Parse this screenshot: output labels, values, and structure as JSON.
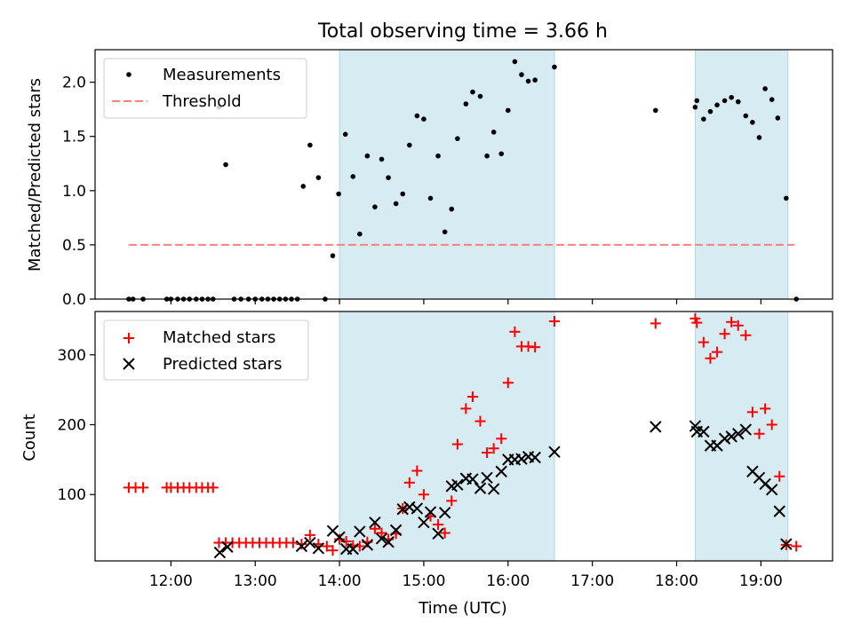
{
  "figure_title": "Total observing time = 3.66 h",
  "colors": {
    "shade": "#add8e6",
    "measurement": "#000000",
    "threshold": "#ff7f7f",
    "matched": "#ff0000",
    "predicted": "#000000"
  },
  "chart_data": [
    {
      "type": "scatter",
      "panel": "top",
      "title": "Total observing time = 3.66 h",
      "xlabel": "",
      "ylabel": "Matched/Predicted stars",
      "xlim": [
        11.1,
        19.85
      ],
      "ylim": [
        0,
        2.3
      ],
      "yticks": [
        0.0,
        0.5,
        1.0,
        1.5,
        2.0
      ],
      "ytick_labels": [
        "0.0",
        "0.5",
        "1.0",
        "1.5",
        "2.0"
      ],
      "xticks": [
        12,
        13,
        14,
        15,
        16,
        17,
        18,
        19
      ],
      "shaded_intervals": [
        [
          14.0,
          16.55
        ],
        [
          18.22,
          19.32
        ]
      ],
      "threshold": {
        "label": "Threshold",
        "y": 0.5,
        "x_range": [
          11.5,
          19.4
        ]
      },
      "legend": {
        "placement": "top-left",
        "entries": [
          "Measurements",
          "Threshold"
        ]
      },
      "series": [
        {
          "name": "Measurements",
          "points": [
            [
              11.5,
              0.0
            ],
            [
              11.55,
              0.0
            ],
            [
              11.67,
              0.0
            ],
            [
              11.95,
              0.0
            ],
            [
              12.0,
              0.0
            ],
            [
              12.08,
              0.0
            ],
            [
              12.15,
              0.0
            ],
            [
              12.22,
              0.0
            ],
            [
              12.3,
              0.0
            ],
            [
              12.37,
              0.0
            ],
            [
              12.44,
              0.0
            ],
            [
              12.5,
              0.0
            ],
            [
              12.57,
              1.77
            ],
            [
              12.65,
              1.24
            ],
            [
              12.75,
              0.0
            ],
            [
              12.83,
              0.0
            ],
            [
              12.92,
              0.0
            ],
            [
              13.0,
              0.0
            ],
            [
              13.08,
              0.0
            ],
            [
              13.15,
              0.0
            ],
            [
              13.22,
              0.0
            ],
            [
              13.29,
              0.0
            ],
            [
              13.36,
              0.0
            ],
            [
              13.43,
              0.0
            ],
            [
              13.5,
              0.0
            ],
            [
              13.57,
              1.04
            ],
            [
              13.65,
              1.42
            ],
            [
              13.75,
              1.12
            ],
            [
              13.83,
              0.0
            ],
            [
              13.92,
              0.4
            ],
            [
              13.99,
              0.97
            ],
            [
              14.07,
              1.52
            ],
            [
              14.16,
              1.13
            ],
            [
              14.24,
              0.6
            ],
            [
              14.33,
              1.32
            ],
            [
              14.42,
              0.85
            ],
            [
              14.5,
              1.29
            ],
            [
              14.58,
              1.12
            ],
            [
              14.67,
              0.88
            ],
            [
              14.75,
              0.97
            ],
            [
              14.83,
              1.42
            ],
            [
              14.92,
              1.69
            ],
            [
              15.0,
              1.66
            ],
            [
              15.08,
              0.93
            ],
            [
              15.17,
              1.32
            ],
            [
              15.25,
              0.62
            ],
            [
              15.33,
              0.83
            ],
            [
              15.4,
              1.48
            ],
            [
              15.5,
              1.8
            ],
            [
              15.58,
              1.91
            ],
            [
              15.67,
              1.87
            ],
            [
              15.75,
              1.32
            ],
            [
              15.83,
              1.54
            ],
            [
              15.92,
              1.34
            ],
            [
              16.0,
              1.74
            ],
            [
              16.08,
              2.19
            ],
            [
              16.16,
              2.07
            ],
            [
              16.24,
              2.01
            ],
            [
              16.32,
              2.02
            ],
            [
              16.55,
              2.14
            ],
            [
              17.75,
              1.74
            ],
            [
              18.22,
              1.77
            ],
            [
              18.24,
              1.83
            ],
            [
              18.32,
              1.66
            ],
            [
              18.4,
              1.73
            ],
            [
              18.48,
              1.79
            ],
            [
              18.57,
              1.83
            ],
            [
              18.65,
              1.86
            ],
            [
              18.73,
              1.82
            ],
            [
              18.82,
              1.69
            ],
            [
              18.9,
              1.63
            ],
            [
              18.98,
              1.49
            ],
            [
              19.05,
              1.94
            ],
            [
              19.13,
              1.84
            ],
            [
              19.2,
              1.67
            ],
            [
              19.3,
              0.93
            ],
            [
              19.42,
              0.0
            ]
          ]
        }
      ]
    },
    {
      "type": "scatter",
      "panel": "bottom",
      "title": "",
      "xlabel": "Time (UTC)",
      "ylabel": "Count",
      "xlim": [
        11.1,
        19.85
      ],
      "ylim": [
        5,
        362
      ],
      "yticks": [
        100,
        200,
        300
      ],
      "ytick_labels": [
        "100",
        "200",
        "300"
      ],
      "xticks": [
        12,
        13,
        14,
        15,
        16,
        17,
        18,
        19
      ],
      "xtick_labels": [
        "12:00",
        "13:00",
        "14:00",
        "15:00",
        "16:00",
        "17:00",
        "18:00",
        "19:00"
      ],
      "shaded_intervals": [
        [
          14.0,
          16.55
        ],
        [
          18.22,
          19.32
        ]
      ],
      "legend": {
        "placement": "top-left",
        "entries": [
          "Matched stars",
          "Predicted stars"
        ]
      },
      "series": [
        {
          "name": "Matched stars",
          "marker": "plus",
          "points": [
            [
              11.5,
              110
            ],
            [
              11.58,
              110
            ],
            [
              11.67,
              110
            ],
            [
              11.95,
              110
            ],
            [
              12.0,
              110
            ],
            [
              12.08,
              110
            ],
            [
              12.15,
              110
            ],
            [
              12.22,
              110
            ],
            [
              12.3,
              110
            ],
            [
              12.37,
              110
            ],
            [
              12.44,
              110
            ],
            [
              12.5,
              110
            ],
            [
              12.57,
              31
            ],
            [
              12.65,
              31
            ],
            [
              12.73,
              31
            ],
            [
              12.81,
              31
            ],
            [
              12.89,
              31
            ],
            [
              12.97,
              31
            ],
            [
              13.05,
              31
            ],
            [
              13.13,
              31
            ],
            [
              13.21,
              31
            ],
            [
              13.29,
              31
            ],
            [
              13.37,
              31
            ],
            [
              13.45,
              31
            ],
            [
              13.55,
              29
            ],
            [
              13.65,
              42
            ],
            [
              13.75,
              29
            ],
            [
              13.85,
              26
            ],
            [
              13.92,
              20
            ],
            [
              14.0,
              36
            ],
            [
              14.08,
              33
            ],
            [
              14.16,
              27
            ],
            [
              14.24,
              26
            ],
            [
              14.33,
              32
            ],
            [
              14.42,
              51
            ],
            [
              14.5,
              45
            ],
            [
              14.58,
              36
            ],
            [
              14.67,
              44
            ],
            [
              14.75,
              80
            ],
            [
              14.83,
              117
            ],
            [
              14.92,
              134
            ],
            [
              15.0,
              100
            ],
            [
              15.08,
              69
            ],
            [
              15.17,
              57
            ],
            [
              15.25,
              45
            ],
            [
              15.33,
              91
            ],
            [
              15.4,
              172
            ],
            [
              15.5,
              223
            ],
            [
              15.58,
              240
            ],
            [
              15.67,
              205
            ],
            [
              15.75,
              160
            ],
            [
              15.83,
              166
            ],
            [
              15.92,
              180
            ],
            [
              16.0,
              260
            ],
            [
              16.08,
              333
            ],
            [
              16.16,
              312
            ],
            [
              16.24,
              312
            ],
            [
              16.32,
              311
            ],
            [
              16.55,
              348
            ],
            [
              17.75,
              345
            ],
            [
              18.22,
              352
            ],
            [
              18.24,
              346
            ],
            [
              18.32,
              318
            ],
            [
              18.4,
              295
            ],
            [
              18.48,
              304
            ],
            [
              18.57,
              330
            ],
            [
              18.65,
              347
            ],
            [
              18.73,
              342
            ],
            [
              18.82,
              328
            ],
            [
              18.9,
              218
            ],
            [
              18.98,
              187
            ],
            [
              19.05,
              223
            ],
            [
              19.13,
              200
            ],
            [
              19.22,
              126
            ],
            [
              19.3,
              28
            ],
            [
              19.42,
              26
            ]
          ]
        },
        {
          "name": "Predicted stars",
          "marker": "x",
          "points": [
            [
              12.58,
              17
            ],
            [
              12.67,
              25
            ],
            [
              13.55,
              26
            ],
            [
              13.65,
              31
            ],
            [
              13.75,
              23
            ],
            [
              13.92,
              48
            ],
            [
              14.0,
              39
            ],
            [
              14.08,
              22
            ],
            [
              14.16,
              22
            ],
            [
              14.24,
              47
            ],
            [
              14.33,
              28
            ],
            [
              14.42,
              60
            ],
            [
              14.5,
              37
            ],
            [
              14.58,
              32
            ],
            [
              14.67,
              49
            ],
            [
              14.75,
              79
            ],
            [
              14.83,
              82
            ],
            [
              14.92,
              80
            ],
            [
              15.0,
              60
            ],
            [
              15.08,
              75
            ],
            [
              15.17,
              44
            ],
            [
              15.25,
              74
            ],
            [
              15.33,
              112
            ],
            [
              15.4,
              114
            ],
            [
              15.5,
              123
            ],
            [
              15.58,
              122
            ],
            [
              15.67,
              109
            ],
            [
              15.75,
              124
            ],
            [
              15.83,
              108
            ],
            [
              15.92,
              133
            ],
            [
              16.0,
              150
            ],
            [
              16.08,
              150
            ],
            [
              16.16,
              151
            ],
            [
              16.24,
              154
            ],
            [
              16.32,
              153
            ],
            [
              16.55,
              161
            ],
            [
              17.75,
              197
            ],
            [
              18.22,
              198
            ],
            [
              18.24,
              190
            ],
            [
              18.32,
              190
            ],
            [
              18.4,
              170
            ],
            [
              18.48,
              170
            ],
            [
              18.57,
              180
            ],
            [
              18.65,
              183
            ],
            [
              18.73,
              187
            ],
            [
              18.82,
              193
            ],
            [
              18.9,
              133
            ],
            [
              18.98,
              124
            ],
            [
              19.05,
              115
            ],
            [
              19.13,
              107
            ],
            [
              19.22,
              76
            ],
            [
              19.3,
              29
            ]
          ]
        }
      ]
    }
  ]
}
